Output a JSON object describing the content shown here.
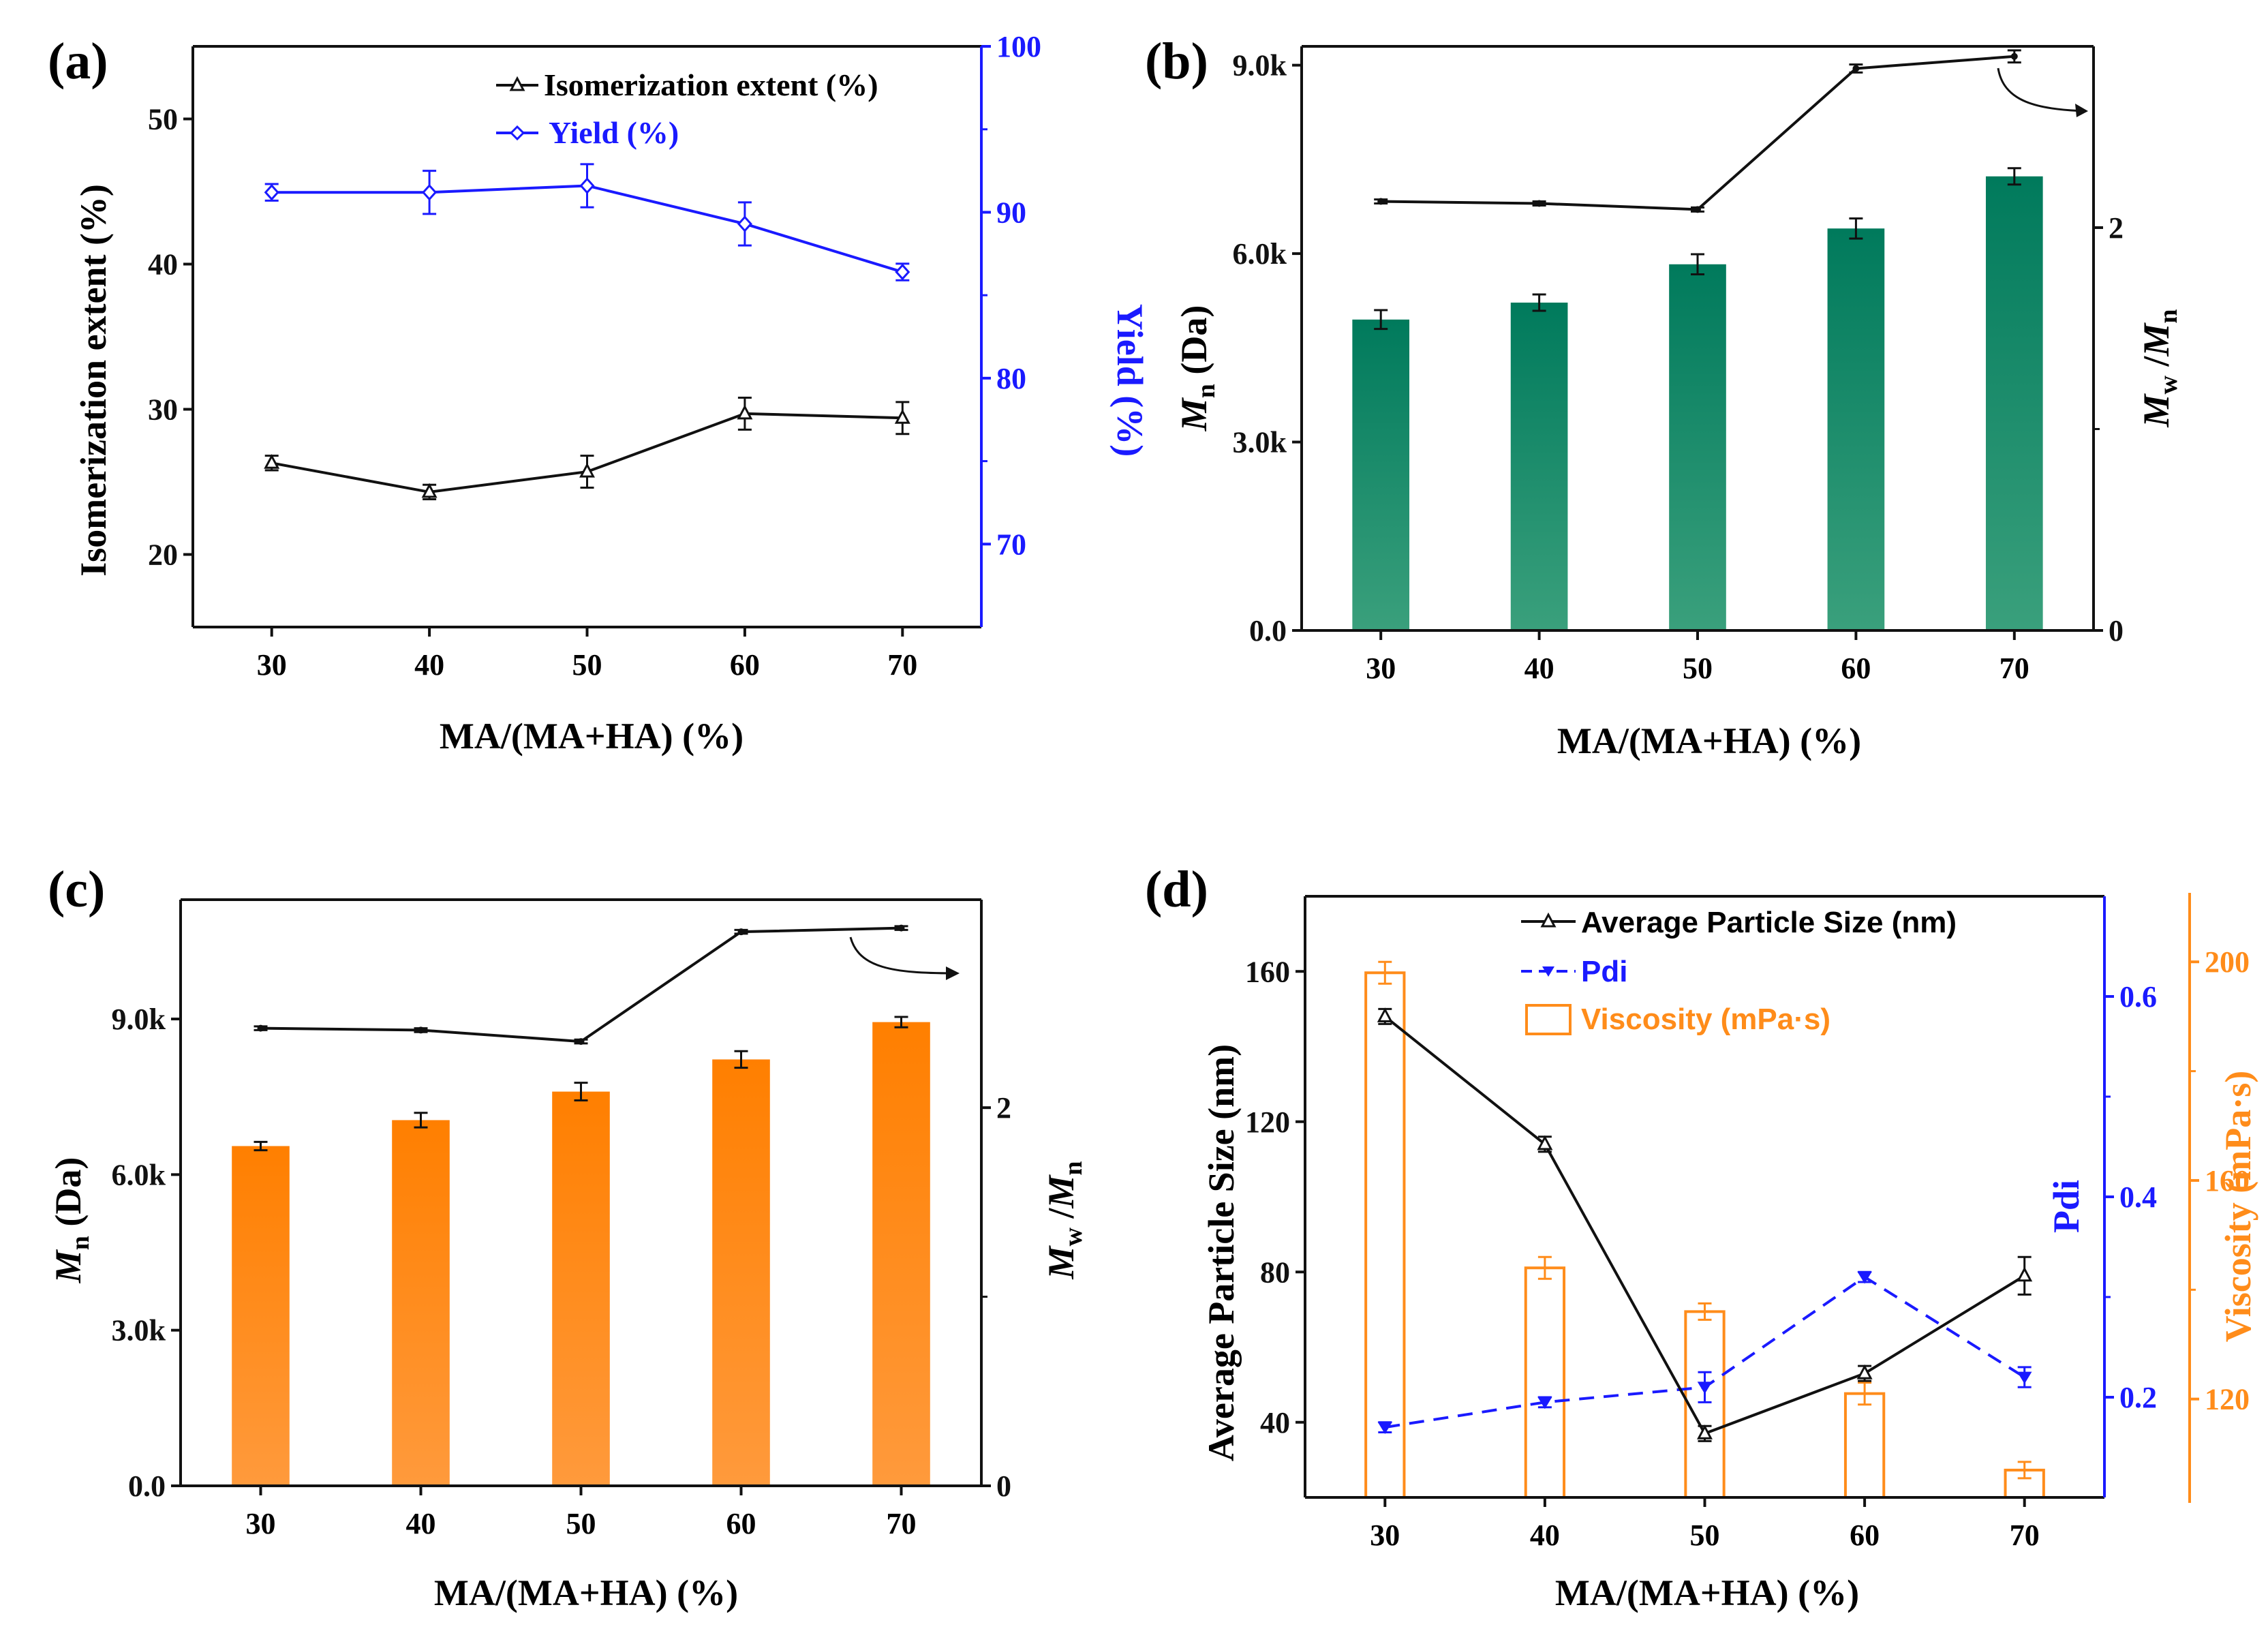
{
  "colors": {
    "black": "#111111",
    "blue": "#1a1aff",
    "teal_dark": "#007a5c",
    "teal_light": "#3aa07c",
    "orange_dark": "#ff7f00",
    "orange_light": "#ff9a3c",
    "orange_axis": "#ff8c1a"
  },
  "chart_data": [
    {
      "panel_label": "(a)",
      "type": "line",
      "x": [
        30,
        40,
        50,
        60,
        70
      ],
      "xlabel": "MA/(MA+HA) (%)",
      "ylabel_left": "Isomerization extent (%)",
      "ylabel_right": "Yield (%)",
      "ylim_left": [
        15,
        55
      ],
      "yticks_left": [
        "20",
        "30",
        "40",
        "50"
      ],
      "ylim_right": [
        65,
        100
      ],
      "yticks_right": [
        "70",
        "80",
        "90",
        "100"
      ],
      "xticks": [
        "30",
        "40",
        "50",
        "60",
        "70"
      ],
      "series": [
        {
          "name": "Isomerization extent (%)",
          "axis": "left",
          "values": [
            26.3,
            24.3,
            25.7,
            29.7,
            29.4
          ],
          "errors": [
            0.5,
            0.5,
            1.1,
            1.1,
            1.1
          ]
        },
        {
          "name": "Yield (%)",
          "axis": "right",
          "values": [
            91.2,
            91.2,
            91.6,
            89.3,
            86.4
          ],
          "errors": [
            0.5,
            1.3,
            1.3,
            1.3,
            0.5
          ]
        }
      ]
    },
    {
      "panel_label": "(b)",
      "type": "bar",
      "x": [
        30,
        40,
        50,
        60,
        70
      ],
      "xlabel": "MA/(MA+HA) (%)",
      "ylabel_left_main": "M",
      "ylabel_left_sub": "n",
      "ylabel_left_rest": " (Da)",
      "ylabel_right_main1": "M",
      "ylabel_right_sub1": "w",
      "ylabel_right_sep": " /",
      "ylabel_right_main2": "M",
      "ylabel_right_sub2": "n",
      "ylim_left": [
        0,
        9300
      ],
      "yticks_left": [
        "0.0",
        "3.0k",
        "6.0k",
        "9.0k"
      ],
      "ylim_right": [
        0,
        2.9
      ],
      "yticks_right": [
        "0",
        "2"
      ],
      "xticks": [
        "30",
        "40",
        "50",
        "60",
        "70"
      ],
      "series": [
        {
          "name": "Mn",
          "axis": "left",
          "kind": "bar",
          "values": [
            4950,
            5220,
            5830,
            6400,
            7230
          ],
          "errors": [
            150,
            130,
            160,
            160,
            130
          ]
        },
        {
          "name": "Mw/Mn",
          "axis": "right",
          "kind": "line",
          "values": [
            2.13,
            2.12,
            2.09,
            2.79,
            2.85
          ],
          "errors": [
            0.01,
            0.01,
            0.01,
            0.02,
            0.03
          ]
        }
      ]
    },
    {
      "panel_label": "(c)",
      "type": "bar",
      "x": [
        30,
        40,
        50,
        60,
        70
      ],
      "xlabel": "MA/(MA+HA) (%)",
      "ylabel_left_main": "M",
      "ylabel_left_sub": "n",
      "ylabel_left_rest": " (Da)",
      "ylabel_right_main1": "M",
      "ylabel_right_sub1": "w",
      "ylabel_right_sep": " /",
      "ylabel_right_main2": "M",
      "ylabel_right_sub2": "n",
      "ylim_left": [
        0,
        11300
      ],
      "yticks_left": [
        "0.0",
        "3.0k",
        "6.0k",
        "9.0k"
      ],
      "ylim_right": [
        0,
        3.1
      ],
      "yticks_right": [
        "0",
        "2"
      ],
      "xticks": [
        "30",
        "40",
        "50",
        "60",
        "70"
      ],
      "series": [
        {
          "name": "Mn",
          "axis": "left",
          "kind": "bar",
          "values": [
            6550,
            7050,
            7600,
            8220,
            8940
          ],
          "errors": [
            80,
            140,
            170,
            160,
            100
          ]
        },
        {
          "name": "Mw/Mn",
          "axis": "right",
          "kind": "line",
          "values": [
            2.42,
            2.41,
            2.35,
            2.93,
            2.95
          ],
          "errors": [
            0.01,
            0.01,
            0.01,
            0.01,
            0.01
          ]
        }
      ]
    },
    {
      "panel_label": "(d)",
      "type": "bar",
      "x": [
        30,
        40,
        50,
        60,
        70
      ],
      "xlabel": "MA/(MA+HA) (%)",
      "ylabel_left": "Average Particle Size (nm)",
      "ylabel_mid": "Pdi",
      "ylabel_right": "Viscosity (mPa·s)",
      "ylim_left": [
        20,
        180
      ],
      "yticks_left": [
        "40",
        "80",
        "120",
        "160"
      ],
      "ylim_mid": [
        0.1,
        0.7
      ],
      "yticks_mid": [
        "0.2",
        "0.4",
        "0.6"
      ],
      "ylim_right": [
        102,
        212
      ],
      "yticks_right": [
        "120",
        "160",
        "200"
      ],
      "xticks": [
        "30",
        "40",
        "50",
        "60",
        "70"
      ],
      "series": [
        {
          "name": "Average Particle Size (nm)",
          "axis": "left",
          "kind": "line",
          "values": [
            148,
            114,
            37,
            53,
            79
          ],
          "errors": [
            2,
            2,
            2,
            2,
            5
          ]
        },
        {
          "name": "Pdi",
          "axis": "mid",
          "kind": "dashed-line",
          "values": [
            0.17,
            0.195,
            0.21,
            0.32,
            0.22
          ],
          "errors": [
            0.005,
            0.005,
            0.015,
            0.005,
            0.01
          ]
        },
        {
          "name": "Viscosity (mPa·s)",
          "axis": "right",
          "kind": "hollow-bar",
          "values": [
            198,
            144,
            136,
            121,
            107
          ],
          "errors": [
            2,
            2,
            1.5,
            2,
            1.5
          ]
        }
      ]
    }
  ]
}
